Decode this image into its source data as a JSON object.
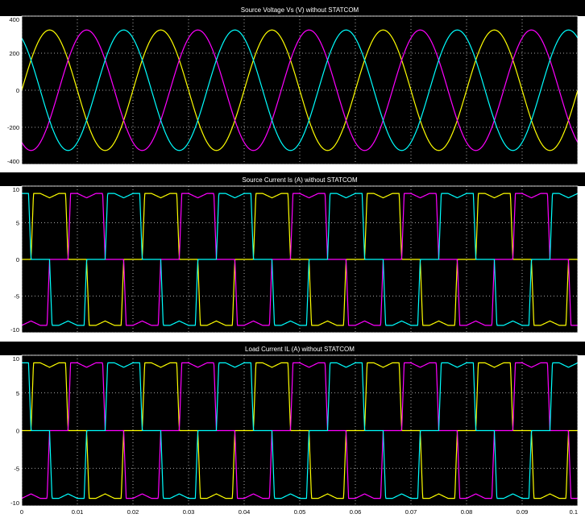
{
  "colors": {
    "background": "#ffffff",
    "plot_background": "#000000",
    "grid": "#ffffff",
    "phase_a": "#ffff00",
    "phase_b": "#ff00ff",
    "phase_c": "#00ffff"
  },
  "chart_data": [
    {
      "type": "line",
      "title": "Source Voltage Vs (V) without STATCOM",
      "xlabel": "",
      "ylabel": "",
      "xlim": [
        0,
        0.1
      ],
      "ylim": [
        -400,
        400
      ],
      "yticks": [
        400,
        200,
        0,
        -200,
        -400
      ],
      "ytick_labels": [
        "400",
        "200",
        "0",
        "-200",
        "-400"
      ],
      "grid": true,
      "waveform": "sine",
      "frequency_hz": 50,
      "amplitude": 325,
      "series": [
        {
          "color": "#ffff00",
          "phase_deg": 0
        },
        {
          "color": "#ff00ff",
          "phase_deg": -120
        },
        {
          "color": "#00ffff",
          "phase_deg": 120
        }
      ]
    },
    {
      "type": "line",
      "title": "Source Current Is (A) without STATCOM",
      "xlabel": "",
      "ylabel": "",
      "xlim": [
        0,
        0.1
      ],
      "ylim": [
        -10,
        10
      ],
      "yticks": [
        10,
        5,
        0,
        -5,
        -10
      ],
      "ytick_labels": [
        "10",
        "5",
        "0",
        "-5",
        "-10"
      ],
      "grid": true,
      "waveform": "quasi-square (six-pulse rectifier)",
      "frequency_hz": 50,
      "amplitude": 9,
      "conduction_deg": 120,
      "series": [
        {
          "color": "#ffff00",
          "phase_deg": 0
        },
        {
          "color": "#ff00ff",
          "phase_deg": -120
        },
        {
          "color": "#00ffff",
          "phase_deg": 120
        }
      ]
    },
    {
      "type": "line",
      "title": "Load Current IL (A) without STATCOM",
      "xlabel": "",
      "ylabel": "",
      "xlim": [
        0,
        0.1
      ],
      "ylim": [
        -10,
        10
      ],
      "yticks": [
        10,
        5,
        0,
        -5,
        -10
      ],
      "ytick_labels": [
        "10",
        "5",
        "0",
        "-5",
        "-10"
      ],
      "xticks": [
        0,
        0.01,
        0.02,
        0.03,
        0.04,
        0.05,
        0.06,
        0.07,
        0.08,
        0.09,
        0.1
      ],
      "xtick_labels": [
        "0",
        "0.01",
        "0.02",
        "0.03",
        "0.04",
        "0.05",
        "0.06",
        "0.07",
        "0.08",
        "0.09",
        "0.1"
      ],
      "grid": true,
      "waveform": "quasi-square (six-pulse rectifier)",
      "frequency_hz": 50,
      "amplitude": 9,
      "conduction_deg": 120,
      "series": [
        {
          "color": "#ffff00",
          "phase_deg": 0
        },
        {
          "color": "#ff00ff",
          "phase_deg": -120
        },
        {
          "color": "#00ffff",
          "phase_deg": 120
        }
      ]
    }
  ]
}
